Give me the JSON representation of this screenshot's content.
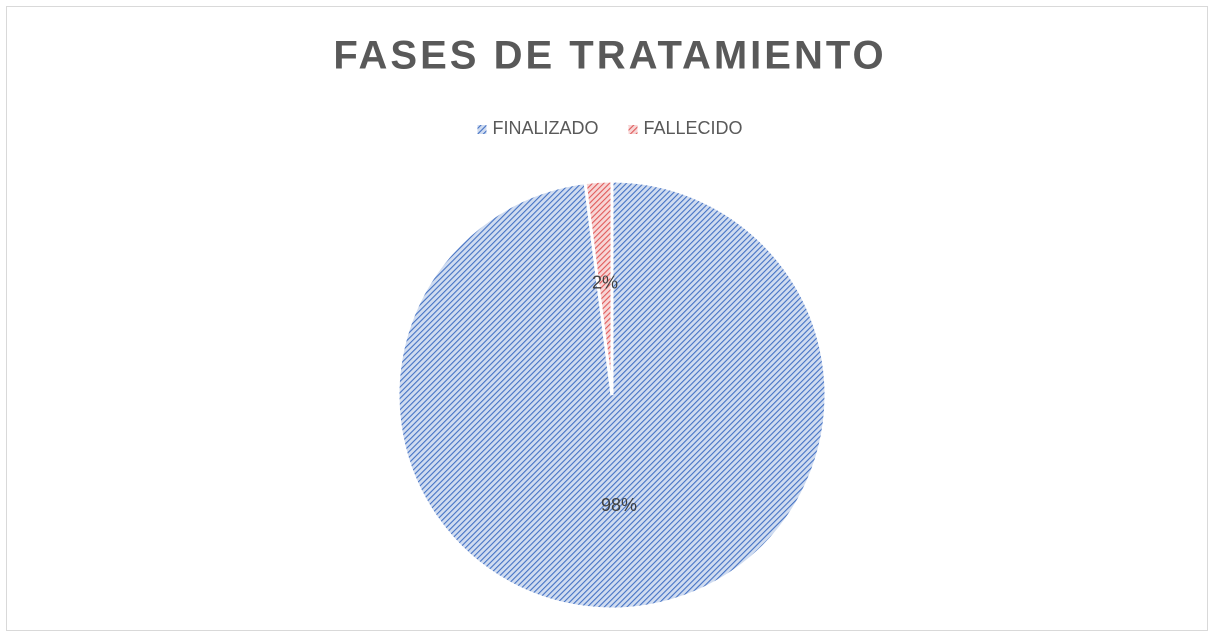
{
  "chart_data": {
    "type": "pie",
    "title": "FASES DE TRATAMIENTO",
    "categories": [
      "FINALIZADO",
      "FALLECIDO"
    ],
    "values": [
      98,
      2
    ],
    "value_labels": [
      "98%",
      "2%"
    ],
    "colors": [
      "#4472c4",
      "#e05a5a"
    ],
    "legend": "top"
  }
}
